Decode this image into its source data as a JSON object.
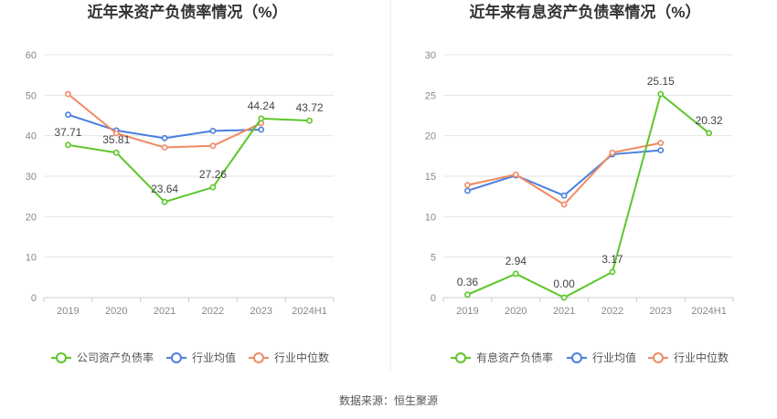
{
  "source": "数据来源：恒生聚源",
  "colors": {
    "company": "#5cc62a",
    "avg": "#4a7fe0",
    "median": "#f08a63",
    "grid": "#e6e6e6",
    "axis": "#cccccc"
  },
  "chart_data": [
    {
      "type": "line",
      "title": "近年来资产负债率情况（%）",
      "categories": [
        "2019",
        "2020",
        "2021",
        "2022",
        "2023",
        "2024H1"
      ],
      "ylim": [
        0,
        60
      ],
      "yticks": [
        0,
        10,
        20,
        30,
        40,
        50,
        60
      ],
      "series": [
        {
          "name": "公司资产负债率",
          "key": "company",
          "values": [
            37.71,
            35.81,
            23.64,
            27.26,
            44.24,
            43.72
          ],
          "labels": [
            "37.71",
            "35.81",
            "23.64",
            "27.26",
            "44.24",
            "43.72"
          ]
        },
        {
          "name": "行业均值",
          "key": "avg",
          "values": [
            45.2,
            41.3,
            39.4,
            41.2,
            41.5,
            null
          ]
        },
        {
          "name": "行业中位数",
          "key": "median",
          "values": [
            50.3,
            40.6,
            37.1,
            37.5,
            43.1,
            null
          ]
        }
      ]
    },
    {
      "type": "line",
      "title": "近年来有息资产负债率情况（%）",
      "categories": [
        "2019",
        "2020",
        "2021",
        "2022",
        "2023",
        "2024H1"
      ],
      "ylim": [
        0,
        30
      ],
      "yticks": [
        0,
        5,
        10,
        15,
        20,
        25,
        30
      ],
      "series": [
        {
          "name": "有息资产负债率",
          "key": "company",
          "values": [
            0.36,
            2.94,
            0.0,
            3.17,
            25.15,
            20.32
          ],
          "labels": [
            "0.36",
            "2.94",
            "0.00",
            "3.17",
            "25.15",
            "20.32"
          ]
        },
        {
          "name": "行业均值",
          "key": "avg",
          "values": [
            13.2,
            15.1,
            12.6,
            17.7,
            18.2,
            null
          ]
        },
        {
          "name": "行业中位数",
          "key": "median",
          "values": [
            13.9,
            15.2,
            11.5,
            17.9,
            19.1,
            null
          ]
        }
      ]
    }
  ]
}
